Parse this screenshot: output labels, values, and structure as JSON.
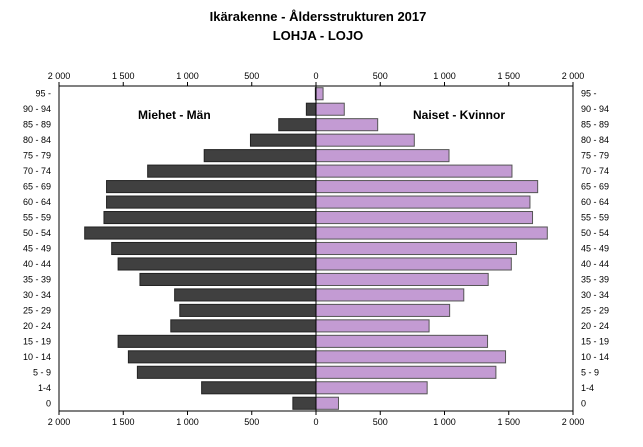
{
  "chart_data": {
    "type": "bar",
    "orientation": "horizontal-population-pyramid",
    "title": "Ikärakenne - Åldersstrukturen 2017",
    "subtitle": "LOHJA - LOJO",
    "categories": [
      "0",
      "1-4",
      "5 - 9",
      "10 - 14",
      "15 - 19",
      "20 - 24",
      "25 - 29",
      "30 - 34",
      "35 - 39",
      "40 - 44",
      "45 - 49",
      "50 - 54",
      "55 - 59",
      "60 - 64",
      "65 - 69",
      "70 - 74",
      "75 - 79",
      "80 - 84",
      "85 - 89",
      "90 - 94",
      "95 -"
    ],
    "series": [
      {
        "name": "Miehet - Män",
        "color": "#404040",
        "values": [
          180,
          890,
          1390,
          1460,
          1540,
          1130,
          1060,
          1100,
          1370,
          1540,
          1590,
          1800,
          1650,
          1630,
          1630,
          1310,
          870,
          510,
          290,
          75,
          5
        ]
      },
      {
        "name": "Naiset - Kvinnor",
        "color": "#c39bd3",
        "values": [
          175,
          865,
          1400,
          1475,
          1335,
          880,
          1040,
          1150,
          1340,
          1520,
          1560,
          1800,
          1685,
          1665,
          1725,
          1525,
          1035,
          765,
          480,
          220,
          55
        ]
      }
    ],
    "xlim": [
      -2000,
      2000
    ],
    "xticks": [
      "2 000",
      "1 500",
      "1 000",
      "500",
      "0",
      "500",
      "1 000",
      "1 500",
      "2 000"
    ],
    "grid": false
  }
}
